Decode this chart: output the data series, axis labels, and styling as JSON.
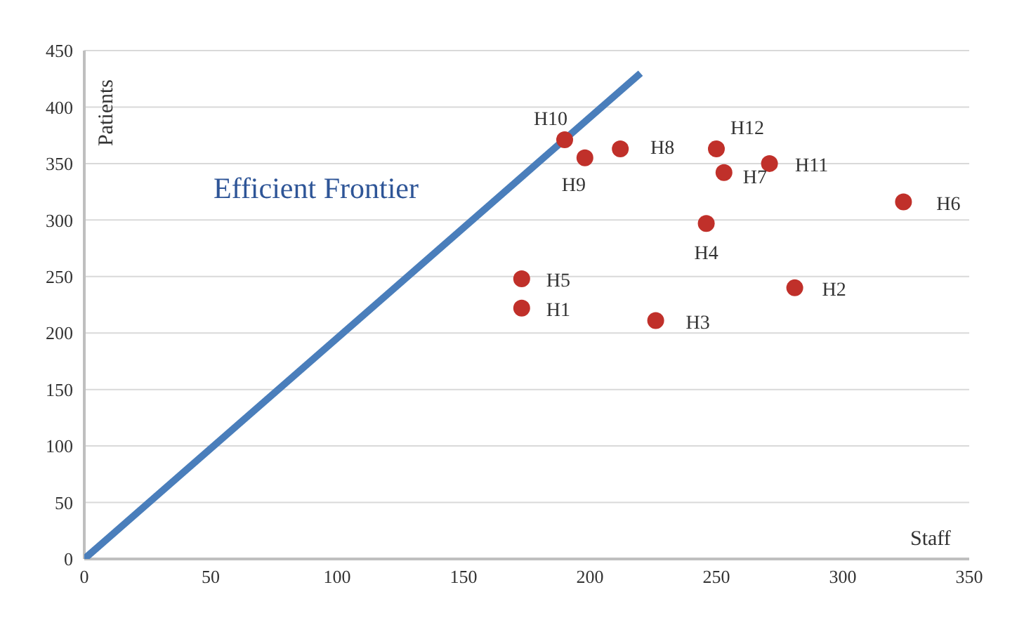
{
  "chart_data": {
    "type": "scatter",
    "xlabel": "Staff",
    "ylabel": "Patients",
    "xlim": [
      0,
      350
    ],
    "xticks": [
      0,
      50,
      100,
      150,
      200,
      250,
      300,
      350
    ],
    "ylim": [
      0,
      450
    ],
    "yticks": [
      0,
      50,
      100,
      150,
      200,
      250,
      300,
      350,
      400,
      450
    ],
    "grid": "y",
    "legend": false,
    "marker": "circle",
    "series": [
      {
        "name": "Efficient Frontier",
        "type": "line",
        "color": "#4a7ebb",
        "marker": "none",
        "line_style": "solid",
        "x": [
          0,
          220
        ],
        "values": [
          0,
          430
        ]
      },
      {
        "color": "#c0302a",
        "x": [
          190,
          198,
          212,
          250,
          253,
          271,
          324,
          246,
          173,
          173,
          226,
          281
        ],
        "values": [
          371,
          355,
          363,
          363,
          342,
          350,
          316,
          297,
          248,
          222,
          211,
          240
        ]
      }
    ],
    "annotations": [
      {
        "text": "H10",
        "x": 190,
        "y": 371
      },
      {
        "text": "H9",
        "x": 198,
        "y": 355
      },
      {
        "text": "H8",
        "x": 212,
        "y": 363
      },
      {
        "text": "H12",
        "x": 250,
        "y": 363
      },
      {
        "text": "H7",
        "x": 253,
        "y": 342
      },
      {
        "text": "H11",
        "x": 271,
        "y": 350
      },
      {
        "text": "H6",
        "x": 324,
        "y": 316
      },
      {
        "text": "H4",
        "x": 246,
        "y": 297
      },
      {
        "text": "H5",
        "x": 173,
        "y": 248
      },
      {
        "text": "H1",
        "x": 173,
        "y": 222
      },
      {
        "text": "H3",
        "x": 226,
        "y": 211
      },
      {
        "text": "H2",
        "x": 281,
        "y": 240
      }
    ]
  }
}
